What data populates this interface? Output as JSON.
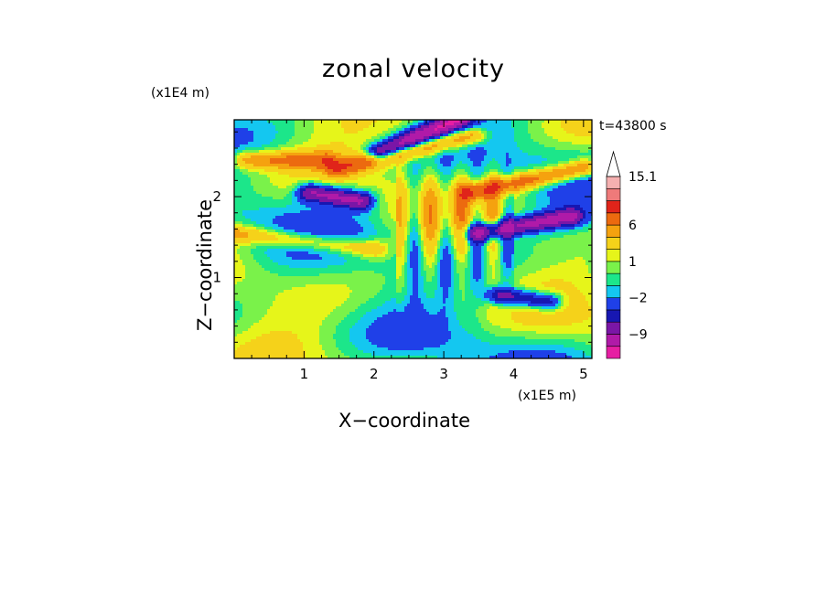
{
  "chart_data": {
    "type": "heatmap",
    "title": "zonal velocity",
    "xlabel": "X−coordinate",
    "ylabel": "Z−coordinate",
    "x_unit": "(x1E5 m)",
    "y_unit": "(x1E4 m)",
    "time_label": "t=43800 s",
    "xlim": [
      0,
      5.12
    ],
    "ylim": [
      0,
      2.95
    ],
    "x_ticks": [
      "1",
      "2",
      "3",
      "4",
      "5"
    ],
    "y_ticks": [
      "1",
      "2"
    ],
    "x_tick_values": [
      1,
      2,
      3,
      4,
      5
    ],
    "y_tick_values": [
      1,
      2
    ],
    "colorbar": {
      "levels": [
        -15,
        -12,
        -9,
        -6,
        -4,
        -2,
        -1,
        0,
        1,
        2,
        4,
        6,
        9,
        12,
        15.1
      ],
      "labels": [
        "15.1",
        "6",
        "1",
        "−2",
        "−9"
      ],
      "label_values": [
        15.1,
        6,
        1,
        -2,
        -9
      ],
      "colors": [
        "#e61ea3",
        "#b01aa8",
        "#7a16a6",
        "#1717b2",
        "#1f40e8",
        "#14c7f0",
        "#1ce68a",
        "#7af24a",
        "#e6f51a",
        "#f5d21a",
        "#f5a20f",
        "#ec6a0f",
        "#e0241a",
        "#ef7a7a",
        "#f5b0b0"
      ],
      "extend_top": true
    }
  }
}
